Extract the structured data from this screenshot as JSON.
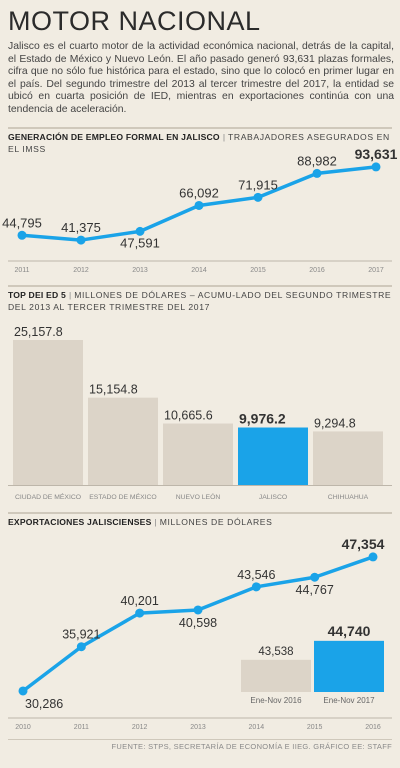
{
  "header": {
    "title": "MOTOR NACIONAL",
    "intro": "Jalisco es el cuarto motor de la actividad económica nacional, detrás de la capital, el Estado de México y Nuevo León. El año pasado generó 93,631 plazas formales, cifra que no sólo fue histórica para el estado, sino que lo colocó en primer lugar en el país. Del segundo trimestre del 2013 al tercer trimestre del 2017, la entidad se ubicó en cuarta posición de IED, mientras en exportaciones continúa con una tendencia de aceleración."
  },
  "section1": {
    "label_bold": "GENERACIÓN DE EMPLEO FORMAL EN JALISCO",
    "label_sub": "TRABAJADORES ASEGURADOS EN EL IMSS"
  },
  "section2": {
    "label_bold": "TOP  DEI ED 5",
    "label_sub_line1": "MILLONES DE DÓLARES – ACUMU-LADO DEL SEGUNDO TRIMESTRE",
    "label_sub_line2": "DEL 2013 AL TERCER TRIMESTRE DEL 2017"
  },
  "section3": {
    "label_bold": "EXPORTACIONES JALISCIENSES",
    "label_sub": "MILLONES DE DÓLARES"
  },
  "footer": {
    "source": "FUENTE: STPS, SECRETARÍA DE ECONOMÍA E IIEG.  GRÁFICO EE: STAFF"
  },
  "colors": {
    "accent": "#1aa3e8",
    "bar_gray": "#dcd4c8",
    "text": "#333333"
  },
  "chart_data": [
    {
      "type": "line",
      "x": [
        "2011",
        "2012",
        "2013",
        "2014",
        "2015",
        "2016",
        "2017"
      ],
      "values": [
        44795,
        41375,
        47591,
        66092,
        71915,
        88982,
        93631
      ],
      "data_labels": [
        "44,795",
        "41,375",
        "47,591",
        "66,092",
        "71,915",
        "88,982",
        "93,631"
      ],
      "highlight_index": 6,
      "ylim": [
        30000,
        100000
      ]
    },
    {
      "type": "bar",
      "categories": [
        "CIUDAD DE MÉXICO",
        "ESTADO DE MÉXICO",
        "NUEVO LEÓN",
        "JALISCO",
        "CHIHUAHUA"
      ],
      "values": [
        25157.8,
        15154.8,
        10665.6,
        9976.2,
        9294.8
      ],
      "data_labels": [
        "25,157.8",
        "15,154.8",
        "10,665.6",
        "9,976.2",
        "9,294.8"
      ],
      "highlight_index": 3,
      "ylim": [
        0,
        26500
      ]
    },
    {
      "type": "line",
      "x": [
        "2010",
        "2011",
        "2012",
        "2013",
        "2014",
        "2015",
        "2016"
      ],
      "values": [
        30286,
        35921,
        40201,
        40598,
        43546,
        44767,
        47354
      ],
      "data_labels": [
        "30,286",
        "35,921",
        "40,201",
        "40,598",
        "43,546",
        "44,767",
        "47,354"
      ],
      "highlight_index": 6,
      "ylim": [
        28500,
        49000
      ]
    },
    {
      "type": "bar",
      "categories": [
        "Ene-Nov 2016",
        "Ene-Nov 2017"
      ],
      "values": [
        43538,
        44740
      ],
      "data_labels": [
        "43,538",
        "44,740"
      ],
      "highlight_index": 1,
      "ylim": [
        41500,
        45300
      ]
    }
  ]
}
